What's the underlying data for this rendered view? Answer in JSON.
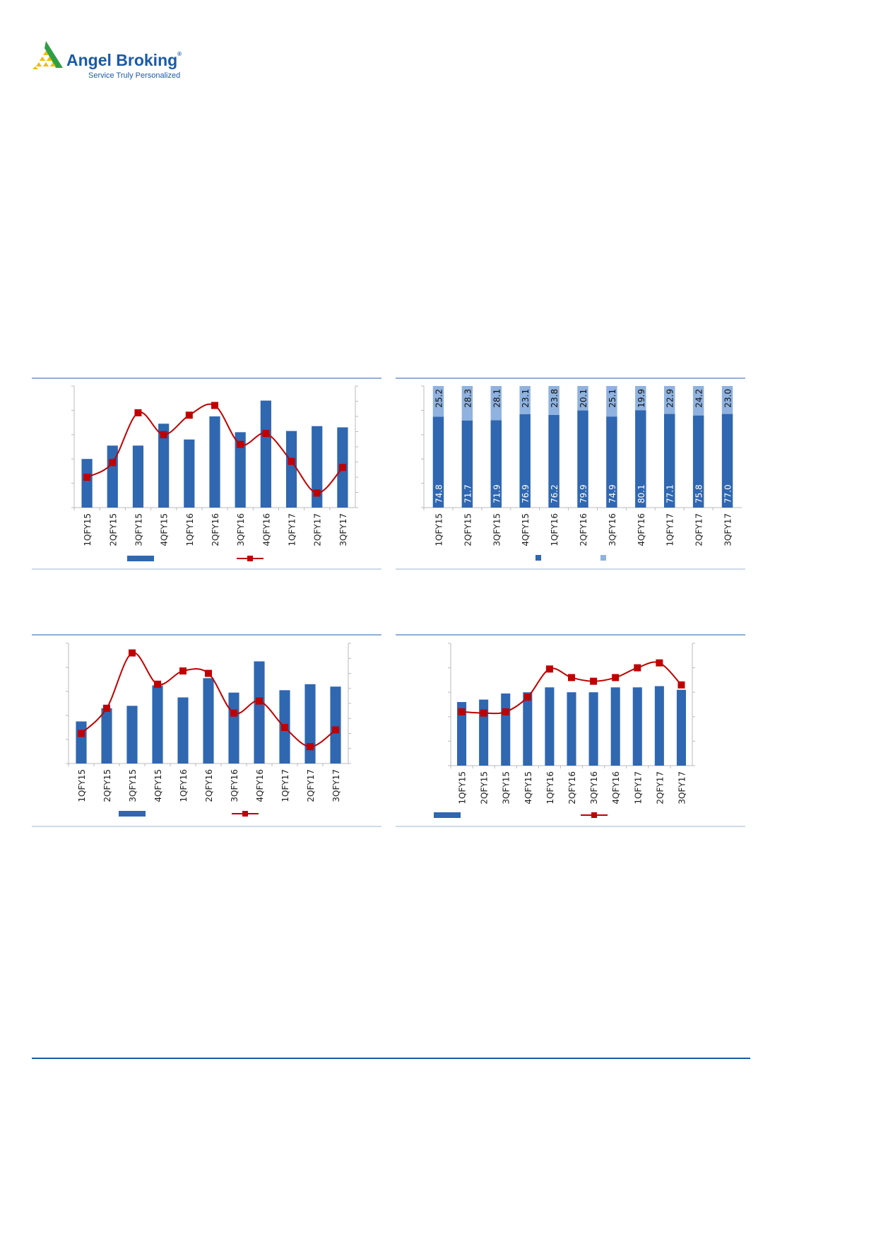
{
  "header": {
    "brand_name": "Angel Broking",
    "tagline": "Service Truly Personalized",
    "registered_mark": "®"
  },
  "colors": {
    "bar": "#2f67b1",
    "bar_light": "#8fb2e0",
    "line": "#c00000",
    "rule": "#4f7fbf",
    "brand": "#1b5aa8"
  },
  "chart_data": [
    {
      "type": "bar+line",
      "note_scale": "values read as percent of axis height; axis tick values not printed",
      "categories": [
        "1QFY15",
        "2QFY15",
        "3QFY15",
        "4QFY15",
        "1QFY16",
        "2QFY16",
        "3QFY16",
        "4QFY16",
        "1QFY17",
        "2QFY17",
        "3QFY17"
      ],
      "bars": [
        40,
        51,
        51,
        69,
        56,
        75,
        62,
        88,
        63,
        67,
        66
      ],
      "line": [
        25,
        37,
        78,
        60,
        76,
        84,
        52,
        61,
        38,
        12,
        33
      ],
      "legend": "bottom"
    },
    {
      "type": "stacked-bar",
      "categories": [
        "1QFY15",
        "2QFY15",
        "3QFY15",
        "4QFY15",
        "1QFY16",
        "2QFY16",
        "3QFY16",
        "4QFY16",
        "1QFY17",
        "2QFY17",
        "3QFY17"
      ],
      "bottom": [
        74.8,
        71.7,
        71.9,
        76.9,
        76.2,
        79.9,
        74.9,
        80.1,
        77.1,
        75.8,
        77.0
      ],
      "top": [
        25.2,
        28.3,
        28.1,
        23.1,
        23.8,
        20.1,
        25.1,
        19.9,
        22.9,
        24.2,
        23.0
      ],
      "ylim": [
        0,
        100
      ],
      "legend": "bottom"
    },
    {
      "type": "bar+line",
      "categories": [
        "1QFY15",
        "2QFY15",
        "3QFY15",
        "4QFY15",
        "1QFY16",
        "2QFY16",
        "3QFY16",
        "4QFY16",
        "1QFY17",
        "2QFY17",
        "3QFY17"
      ],
      "bars": [
        35,
        46,
        48,
        65,
        55,
        71,
        59,
        85,
        61,
        66,
        64
      ],
      "line": [
        25,
        46,
        92,
        66,
        77,
        75,
        42,
        52,
        30,
        14,
        28
      ],
      "legend": "bottom"
    },
    {
      "type": "bar+line",
      "categories": [
        "1QFY15",
        "2QFY15",
        "3QFY15",
        "4QFY15",
        "1QFY16",
        "2QFY16",
        "3QFY16",
        "4QFY16",
        "1QFY17",
        "2QFY17",
        "3QFY17"
      ],
      "bars": [
        52,
        54,
        59,
        60,
        64,
        60,
        60,
        64,
        64,
        65,
        62
      ],
      "line": [
        44,
        43,
        44,
        56,
        79,
        72,
        69,
        72,
        80,
        84,
        66
      ],
      "legend": "bottom"
    }
  ]
}
